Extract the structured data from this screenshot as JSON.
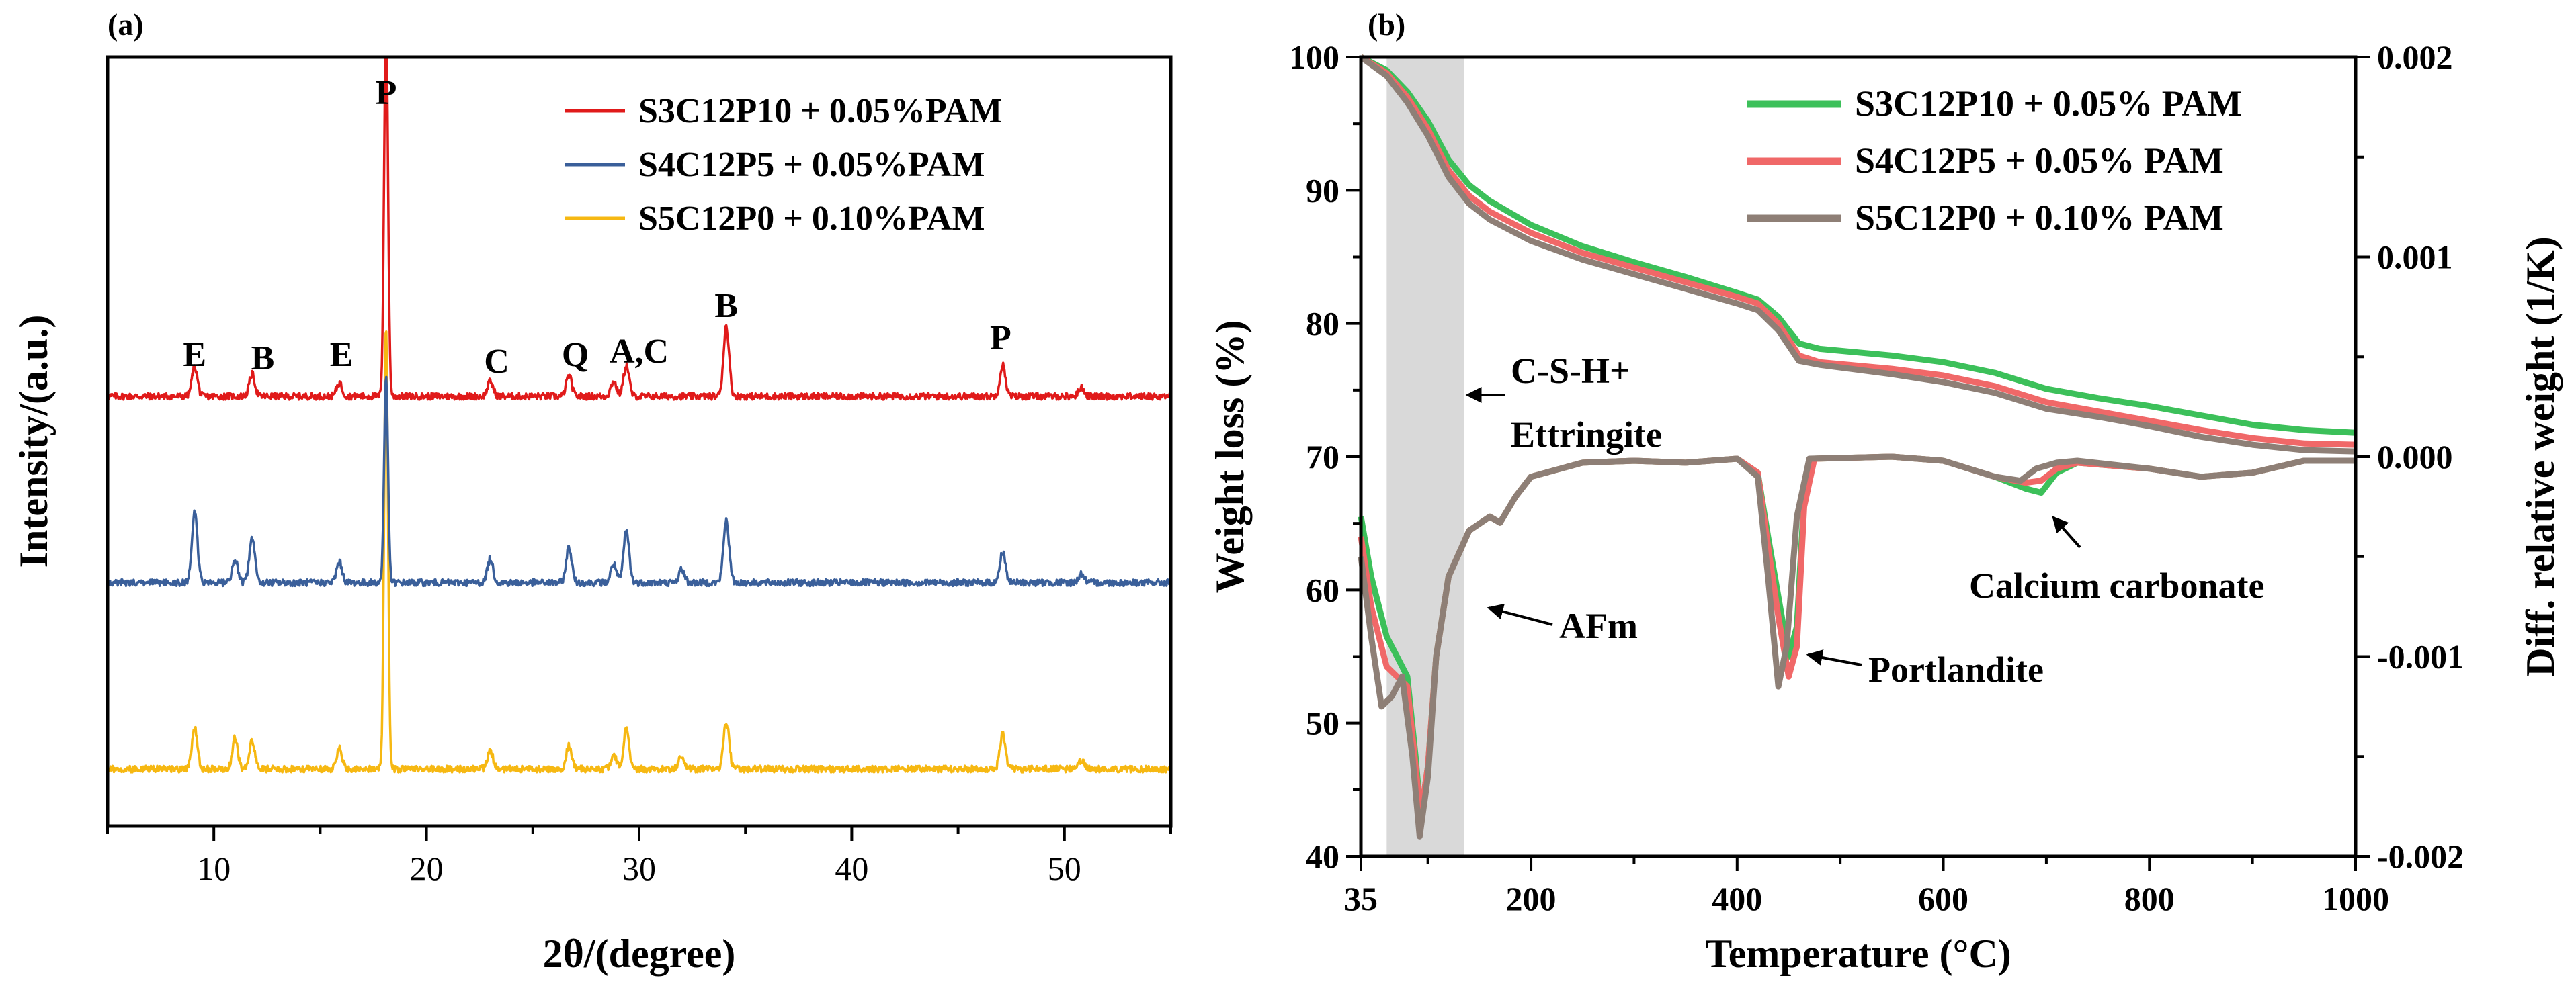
{
  "chart_data": [
    {
      "panel_label": "(a)",
      "type": "line",
      "title": "",
      "xlabel": "2θ/(degree)",
      "ylabel": "Intensity/(a.u.)",
      "xlim": [
        5,
        55
      ],
      "xticks": [
        10,
        20,
        30,
        40,
        50
      ],
      "yticks": [],
      "series": [
        {
          "name": "S3C12P10 + 0.05%PAM",
          "color": "#e01a1a",
          "baseline": 1.0,
          "peaks": [
            [
              9.1,
              0.4
            ],
            [
              11.8,
              0.3
            ],
            [
              15.9,
              0.18
            ],
            [
              18.1,
              5.2
            ],
            [
              23.0,
              0.2
            ],
            [
              26.7,
              0.28
            ],
            [
              28.8,
              0.2
            ],
            [
              29.4,
              0.42
            ],
            [
              34.1,
              0.95
            ],
            [
              47.1,
              0.42
            ],
            [
              50.8,
              0.12
            ]
          ]
        },
        {
          "name": "S4C12P5 + 0.05%PAM",
          "color": "#3a5f9a",
          "baseline": 0.55,
          "peaks": [
            [
              9.1,
              0.95
            ],
            [
              11.0,
              0.32
            ],
            [
              11.8,
              0.6
            ],
            [
              15.9,
              0.28
            ],
            [
              18.1,
              2.8
            ],
            [
              23.0,
              0.32
            ],
            [
              26.7,
              0.48
            ],
            [
              28.8,
              0.25
            ],
            [
              29.4,
              0.7
            ],
            [
              32.0,
              0.18
            ],
            [
              34.1,
              0.85
            ],
            [
              47.1,
              0.42
            ],
            [
              50.8,
              0.12
            ]
          ]
        },
        {
          "name": "S5C12P0 + 0.10%PAM",
          "color": "#f6b812",
          "baseline": 0.1,
          "peaks": [
            [
              9.1,
              0.55
            ],
            [
              11.0,
              0.42
            ],
            [
              11.8,
              0.38
            ],
            [
              15.9,
              0.28
            ],
            [
              18.1,
              6.0
            ],
            [
              23.0,
              0.25
            ],
            [
              26.7,
              0.32
            ],
            [
              28.8,
              0.2
            ],
            [
              29.4,
              0.55
            ],
            [
              32.0,
              0.18
            ],
            [
              34.1,
              0.65
            ],
            [
              47.1,
              0.48
            ],
            [
              50.8,
              0.12
            ]
          ]
        }
      ],
      "annotations": [
        {
          "text": "E",
          "x": 9.1
        },
        {
          "text": "B",
          "x": 12.3
        },
        {
          "text": "E",
          "x": 16.0
        },
        {
          "text": "P",
          "x": 18.1
        },
        {
          "text": "C",
          "x": 23.3
        },
        {
          "text": "Q",
          "x": 27.0
        },
        {
          "text": "A,C",
          "x": 30.0
        },
        {
          "text": "B",
          "x": 34.1
        },
        {
          "text": "P",
          "x": 47.0
        }
      ]
    },
    {
      "panel_label": "(b)",
      "type": "line",
      "title": "",
      "xlabel": "Temperature (°C)",
      "ylabel": "Weight loss (%)",
      "y2label": "Diff. relative weight (1/K)",
      "xlim": [
        35,
        1000
      ],
      "ylim": [
        40,
        100
      ],
      "y2lim": [
        -0.002,
        0.002
      ],
      "xticks": [
        35,
        200,
        400,
        600,
        800,
        1000
      ],
      "yticks": [
        40,
        50,
        60,
        70,
        80,
        90,
        100
      ],
      "y2ticks": [
        "-0.002",
        "-0.001",
        "0.000",
        "0.001",
        "0.002"
      ],
      "shaded_range": [
        60,
        135
      ],
      "weight_loss_series": [
        {
          "name": "S3C12P10 + 0.05% PAM",
          "color": "#3cc05a",
          "points": [
            [
              35,
              100
            ],
            [
              60,
              99
            ],
            [
              80,
              97.4
            ],
            [
              100,
              95.2
            ],
            [
              120,
              92.3
            ],
            [
              140,
              90.4
            ],
            [
              160,
              89.2
            ],
            [
              200,
              87.4
            ],
            [
              250,
              85.8
            ],
            [
              300,
              84.6
            ],
            [
              350,
              83.5
            ],
            [
              400,
              82.3
            ],
            [
              420,
              81.8
            ],
            [
              440,
              80.5
            ],
            [
              460,
              78.5
            ],
            [
              480,
              78.1
            ],
            [
              550,
              77.6
            ],
            [
              600,
              77.1
            ],
            [
              650,
              76.3
            ],
            [
              700,
              75.1
            ],
            [
              750,
              74.4
            ],
            [
              800,
              73.8
            ],
            [
              850,
              73.1
            ],
            [
              900,
              72.4
            ],
            [
              950,
              72.0
            ],
            [
              1000,
              71.8
            ]
          ]
        },
        {
          "name": "S4C12P5 + 0.05% PAM",
          "color": "#f06868",
          "points": [
            [
              35,
              100
            ],
            [
              60,
              98.8
            ],
            [
              80,
              97
            ],
            [
              100,
              94.6
            ],
            [
              120,
              91.5
            ],
            [
              140,
              89.6
            ],
            [
              160,
              88.4
            ],
            [
              200,
              86.8
            ],
            [
              250,
              85.3
            ],
            [
              300,
              84.2
            ],
            [
              350,
              83.1
            ],
            [
              400,
              82.0
            ],
            [
              420,
              81.5
            ],
            [
              440,
              80.0
            ],
            [
              460,
              77.6
            ],
            [
              480,
              77.1
            ],
            [
              550,
              76.6
            ],
            [
              600,
              76.1
            ],
            [
              650,
              75.3
            ],
            [
              700,
              74.1
            ],
            [
              750,
              73.4
            ],
            [
              800,
              72.7
            ],
            [
              850,
              72.0
            ],
            [
              900,
              71.4
            ],
            [
              950,
              71.0
            ],
            [
              1000,
              70.9
            ]
          ]
        },
        {
          "name": "S5C12P0 + 0.10% PAM",
          "color": "#8e7f76",
          "points": [
            [
              35,
              100
            ],
            [
              60,
              98.6
            ],
            [
              80,
              96.6
            ],
            [
              100,
              94.1
            ],
            [
              120,
              91.0
            ],
            [
              140,
              89.0
            ],
            [
              160,
              87.8
            ],
            [
              200,
              86.2
            ],
            [
              250,
              84.8
            ],
            [
              300,
              83.7
            ],
            [
              350,
              82.6
            ],
            [
              400,
              81.5
            ],
            [
              420,
              81.0
            ],
            [
              440,
              79.5
            ],
            [
              460,
              77.2
            ],
            [
              480,
              76.9
            ],
            [
              550,
              76.2
            ],
            [
              600,
              75.6
            ],
            [
              650,
              74.8
            ],
            [
              700,
              73.6
            ],
            [
              750,
              73.0
            ],
            [
              800,
              72.3
            ],
            [
              850,
              71.5
            ],
            [
              900,
              70.9
            ],
            [
              950,
              70.5
            ],
            [
              1000,
              70.4
            ]
          ]
        }
      ],
      "dtg_series": [
        {
          "name": "S3C12P10 + 0.05% PAM",
          "color": "#3cc05a",
          "points": [
            [
              35,
              -0.0003
            ],
            [
              45,
              -0.0006
            ],
            [
              60,
              -0.0009
            ],
            [
              70,
              -0.001
            ],
            [
              80,
              -0.0011
            ],
            [
              88,
              -0.0015
            ],
            [
              93,
              -0.0018
            ],
            [
              100,
              -0.00155
            ],
            [
              108,
              -0.001
            ],
            [
              120,
              -0.0006
            ],
            [
              140,
              -0.00037
            ],
            [
              160,
              -0.0003
            ],
            [
              170,
              -0.00033
            ],
            [
              185,
              -0.0002
            ],
            [
              200,
              -0.0001
            ],
            [
              250,
              -3e-05
            ],
            [
              300,
              -2e-05
            ],
            [
              350,
              -3e-05
            ],
            [
              400,
              -1e-05
            ],
            [
              420,
              -8e-05
            ],
            [
              430,
              -0.0004
            ],
            [
              440,
              -0.0007
            ],
            [
              450,
              -0.001
            ],
            [
              458,
              -0.00085
            ],
            [
              465,
              -0.0002
            ],
            [
              475,
              -1e-05
            ],
            [
              550,
              0.0
            ],
            [
              600,
              -2e-05
            ],
            [
              650,
              -0.0001
            ],
            [
              680,
              -0.00016
            ],
            [
              695,
              -0.00018
            ],
            [
              710,
              -8e-05
            ],
            [
              730,
              -3e-05
            ],
            [
              800,
              -6e-05
            ],
            [
              850,
              -0.0001
            ],
            [
              900,
              -8e-05
            ],
            [
              950,
              -2e-05
            ],
            [
              1000,
              -2e-05
            ]
          ]
        },
        {
          "name": "S4C12P5 + 0.05% PAM",
          "color": "#f06868",
          "points": [
            [
              35,
              -0.0004
            ],
            [
              45,
              -0.00075
            ],
            [
              60,
              -0.00105
            ],
            [
              70,
              -0.0011
            ],
            [
              80,
              -0.00115
            ],
            [
              88,
              -0.00155
            ],
            [
              93,
              -0.0018
            ],
            [
              100,
              -0.00155
            ],
            [
              108,
              -0.001
            ],
            [
              120,
              -0.0006
            ],
            [
              140,
              -0.00037
            ],
            [
              160,
              -0.0003
            ],
            [
              170,
              -0.00033
            ],
            [
              185,
              -0.0002
            ],
            [
              200,
              -0.0001
            ],
            [
              250,
              -3e-05
            ],
            [
              300,
              -2e-05
            ],
            [
              350,
              -3e-05
            ],
            [
              400,
              -1e-05
            ],
            [
              420,
              -8e-05
            ],
            [
              430,
              -0.00045
            ],
            [
              440,
              -0.0008
            ],
            [
              450,
              -0.0011
            ],
            [
              458,
              -0.00095
            ],
            [
              465,
              -0.00025
            ],
            [
              475,
              -1e-05
            ],
            [
              550,
              0.0
            ],
            [
              600,
              -2e-05
            ],
            [
              650,
              -0.0001
            ],
            [
              680,
              -0.00013
            ],
            [
              695,
              -0.00012
            ],
            [
              710,
              -6e-05
            ],
            [
              730,
              -3e-05
            ],
            [
              800,
              -6e-05
            ],
            [
              850,
              -0.0001
            ],
            [
              900,
              -8e-05
            ],
            [
              950,
              -2e-05
            ],
            [
              1000,
              -2e-05
            ]
          ]
        },
        {
          "name": "S5C12P0 + 0.10% PAM",
          "color": "#8e7f76",
          "points": [
            [
              35,
              -0.0005
            ],
            [
              45,
              -0.0009
            ],
            [
              55,
              -0.00125
            ],
            [
              65,
              -0.0012
            ],
            [
              75,
              -0.0011
            ],
            [
              85,
              -0.0015
            ],
            [
              92,
              -0.0019
            ],
            [
              100,
              -0.0016
            ],
            [
              108,
              -0.001
            ],
            [
              120,
              -0.0006
            ],
            [
              140,
              -0.00037
            ],
            [
              160,
              -0.0003
            ],
            [
              170,
              -0.00033
            ],
            [
              185,
              -0.0002
            ],
            [
              200,
              -0.0001
            ],
            [
              250,
              -3e-05
            ],
            [
              300,
              -2e-05
            ],
            [
              350,
              -3e-05
            ],
            [
              400,
              -1e-05
            ],
            [
              420,
              -0.0001
            ],
            [
              430,
              -0.0006
            ],
            [
              440,
              -0.00115
            ],
            [
              448,
              -0.00095
            ],
            [
              458,
              -0.0003
            ],
            [
              470,
              -1e-05
            ],
            [
              550,
              0.0
            ],
            [
              600,
              -2e-05
            ],
            [
              650,
              -0.0001
            ],
            [
              675,
              -0.00012
            ],
            [
              690,
              -6e-05
            ],
            [
              710,
              -3e-05
            ],
            [
              730,
              -2e-05
            ],
            [
              800,
              -6e-05
            ],
            [
              850,
              -0.0001
            ],
            [
              900,
              -8e-05
            ],
            [
              950,
              -2e-05
            ],
            [
              1000,
              -2e-05
            ]
          ]
        }
      ],
      "annotations": [
        {
          "text_lines": [
            "C-S-H+",
            "Ettringite"
          ]
        },
        {
          "text_lines": [
            "AFm"
          ]
        },
        {
          "text_lines": [
            "Portlandite"
          ]
        },
        {
          "text_lines": [
            "Calcium carbonate"
          ]
        }
      ]
    }
  ]
}
